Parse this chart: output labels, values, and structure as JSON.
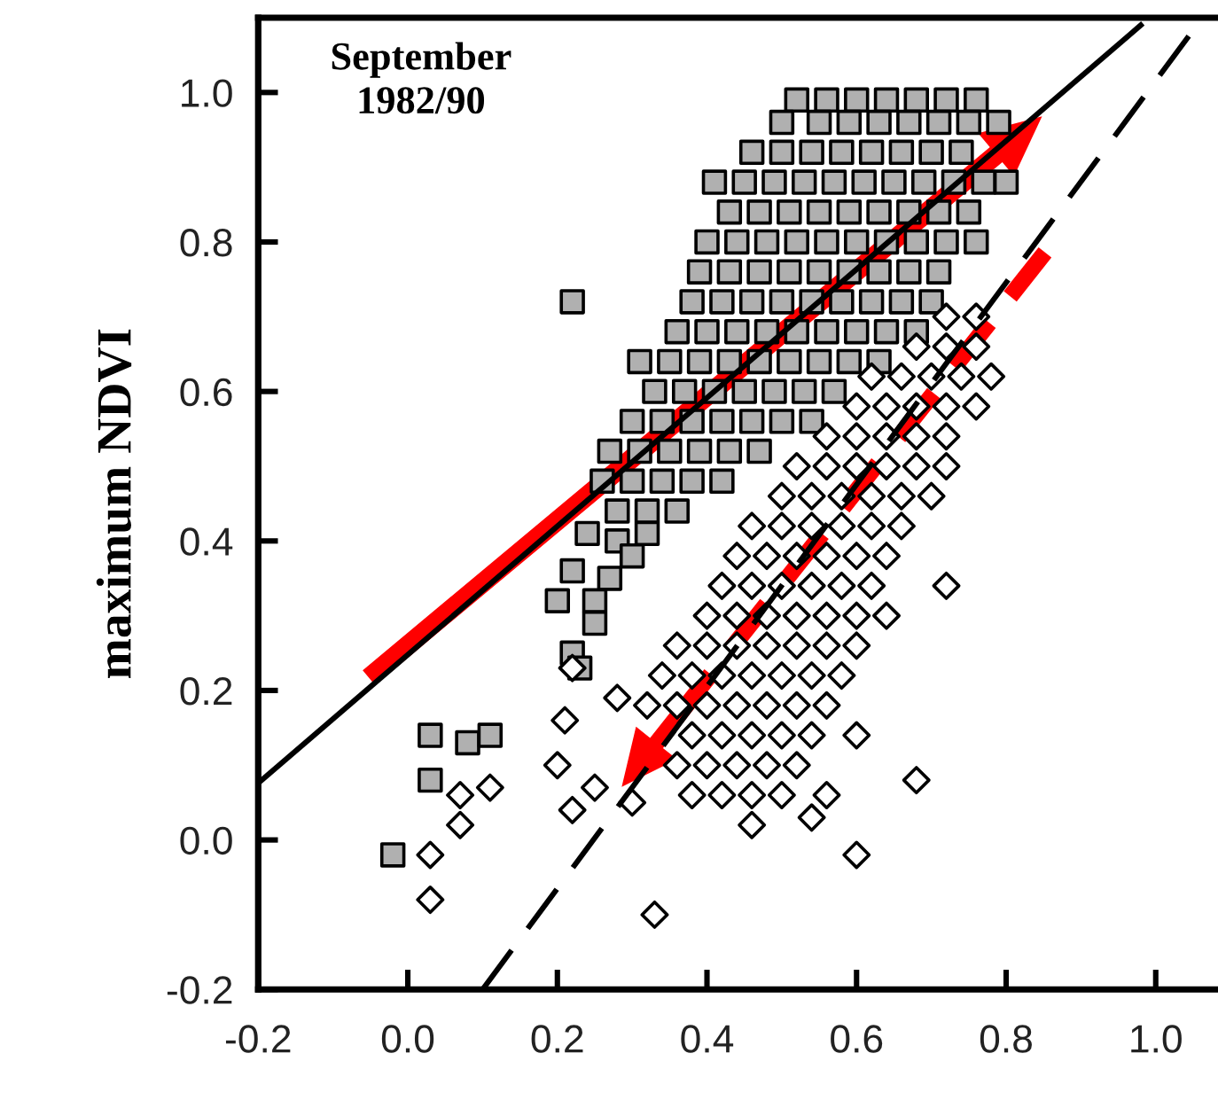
{
  "chart_data": {
    "type": "scatter",
    "ylabel": "maximum NDVI",
    "annotations": [
      "September\n1982/90"
    ],
    "xlim": [
      -0.2,
      1.08
    ],
    "ylim": [
      -0.2,
      1.1
    ],
    "xticks": [
      {
        "value": -0.2,
        "label": "-0.2"
      },
      {
        "value": 0,
        "label": "0.0"
      },
      0.2,
      0.4,
      0.6,
      0.8,
      {
        "value": 1,
        "label": "1.0"
      }
    ],
    "yticks": [
      {
        "value": -0.2,
        "label": "-0.2"
      },
      {
        "value": 0,
        "label": "0.0"
      },
      0.2,
      0.4,
      0.6,
      0.8,
      {
        "value": 1,
        "label": "1.0"
      }
    ],
    "grid": false,
    "series": [
      {
        "marker": "square",
        "color": "#b0b0b0",
        "x": [
          0.52,
          0.56,
          0.6,
          0.64,
          0.68,
          0.72,
          0.76,
          0.5,
          0.55,
          0.59,
          0.63,
          0.67,
          0.71,
          0.75,
          0.79,
          0.46,
          0.5,
          0.54,
          0.58,
          0.62,
          0.66,
          0.7,
          0.74,
          0.41,
          0.45,
          0.49,
          0.53,
          0.57,
          0.61,
          0.65,
          0.69,
          0.73,
          0.77,
          0.8,
          0.43,
          0.47,
          0.51,
          0.55,
          0.59,
          0.63,
          0.67,
          0.71,
          0.75,
          0.4,
          0.44,
          0.48,
          0.52,
          0.56,
          0.6,
          0.64,
          0.68,
          0.72,
          0.76,
          0.39,
          0.43,
          0.47,
          0.51,
          0.55,
          0.59,
          0.63,
          0.67,
          0.71,
          0.38,
          0.42,
          0.46,
          0.5,
          0.54,
          0.58,
          0.62,
          0.66,
          0.7,
          0.36,
          0.4,
          0.44,
          0.48,
          0.52,
          0.56,
          0.6,
          0.64,
          0.68,
          0.31,
          0.35,
          0.39,
          0.43,
          0.47,
          0.51,
          0.55,
          0.59,
          0.63,
          0.33,
          0.37,
          0.41,
          0.45,
          0.49,
          0.53,
          0.57,
          0.3,
          0.34,
          0.38,
          0.42,
          0.46,
          0.5,
          0.54,
          0.27,
          0.31,
          0.35,
          0.39,
          0.43,
          0.47,
          0.26,
          0.3,
          0.34,
          0.38,
          0.42,
          0.28,
          0.32,
          0.36,
          0.22,
          0.24,
          0.28,
          0.3,
          0.32,
          0.27,
          0.22,
          0.2,
          0.25,
          0.25,
          0.22,
          0.23,
          0.03,
          0.08,
          0.11,
          0.03,
          -0.02
        ],
        "values": [
          0.99,
          0.99,
          0.99,
          0.99,
          0.99,
          0.99,
          0.99,
          0.96,
          0.96,
          0.96,
          0.96,
          0.96,
          0.96,
          0.96,
          0.96,
          0.92,
          0.92,
          0.92,
          0.92,
          0.92,
          0.92,
          0.92,
          0.92,
          0.88,
          0.88,
          0.88,
          0.88,
          0.88,
          0.88,
          0.88,
          0.88,
          0.88,
          0.88,
          0.88,
          0.84,
          0.84,
          0.84,
          0.84,
          0.84,
          0.84,
          0.84,
          0.84,
          0.84,
          0.8,
          0.8,
          0.8,
          0.8,
          0.8,
          0.8,
          0.8,
          0.8,
          0.8,
          0.8,
          0.76,
          0.76,
          0.76,
          0.76,
          0.76,
          0.76,
          0.76,
          0.76,
          0.76,
          0.72,
          0.72,
          0.72,
          0.72,
          0.72,
          0.72,
          0.72,
          0.72,
          0.72,
          0.68,
          0.68,
          0.68,
          0.68,
          0.68,
          0.68,
          0.68,
          0.68,
          0.68,
          0.64,
          0.64,
          0.64,
          0.64,
          0.64,
          0.64,
          0.64,
          0.64,
          0.64,
          0.6,
          0.6,
          0.6,
          0.6,
          0.6,
          0.6,
          0.6,
          0.56,
          0.56,
          0.56,
          0.56,
          0.56,
          0.56,
          0.56,
          0.52,
          0.52,
          0.52,
          0.52,
          0.52,
          0.52,
          0.48,
          0.48,
          0.48,
          0.48,
          0.48,
          0.44,
          0.44,
          0.44,
          0.72,
          0.41,
          0.4,
          0.38,
          0.41,
          0.35,
          0.36,
          0.32,
          0.32,
          0.29,
          0.25,
          0.23,
          0.14,
          0.13,
          0.14,
          0.08,
          -0.02
        ]
      },
      {
        "marker": "diamond",
        "color": "#ffffff",
        "x": [
          0.72,
          0.76,
          0.68,
          0.72,
          0.76,
          0.62,
          0.66,
          0.7,
          0.74,
          0.78,
          0.6,
          0.64,
          0.68,
          0.72,
          0.76,
          0.56,
          0.6,
          0.64,
          0.68,
          0.72,
          0.52,
          0.56,
          0.6,
          0.64,
          0.68,
          0.72,
          0.5,
          0.54,
          0.58,
          0.62,
          0.66,
          0.7,
          0.46,
          0.5,
          0.54,
          0.58,
          0.62,
          0.66,
          0.44,
          0.48,
          0.52,
          0.56,
          0.6,
          0.64,
          0.42,
          0.46,
          0.5,
          0.54,
          0.58,
          0.62,
          0.72,
          0.4,
          0.44,
          0.48,
          0.52,
          0.56,
          0.6,
          0.64,
          0.36,
          0.4,
          0.44,
          0.48,
          0.52,
          0.56,
          0.6,
          0.34,
          0.38,
          0.42,
          0.46,
          0.5,
          0.54,
          0.58,
          0.32,
          0.36,
          0.4,
          0.44,
          0.48,
          0.52,
          0.56,
          0.38,
          0.42,
          0.46,
          0.5,
          0.54,
          0.6,
          0.36,
          0.4,
          0.44,
          0.48,
          0.52,
          0.38,
          0.42,
          0.46,
          0.5,
          0.56,
          0.68,
          0.6,
          0.54,
          0.46,
          0.33,
          0.2,
          0.21,
          0.22,
          0.28,
          0.25,
          0.3,
          0.03,
          0.03,
          0.07,
          0.11,
          0.07,
          0.22
        ],
        "values": [
          0.7,
          0.7,
          0.66,
          0.66,
          0.66,
          0.62,
          0.62,
          0.62,
          0.62,
          0.62,
          0.58,
          0.58,
          0.58,
          0.58,
          0.58,
          0.54,
          0.54,
          0.54,
          0.54,
          0.54,
          0.5,
          0.5,
          0.5,
          0.5,
          0.5,
          0.5,
          0.46,
          0.46,
          0.46,
          0.46,
          0.46,
          0.46,
          0.42,
          0.42,
          0.42,
          0.42,
          0.42,
          0.42,
          0.38,
          0.38,
          0.38,
          0.38,
          0.38,
          0.38,
          0.34,
          0.34,
          0.34,
          0.34,
          0.34,
          0.34,
          0.34,
          0.3,
          0.3,
          0.3,
          0.3,
          0.3,
          0.3,
          0.3,
          0.26,
          0.26,
          0.26,
          0.26,
          0.26,
          0.26,
          0.26,
          0.22,
          0.22,
          0.22,
          0.22,
          0.22,
          0.22,
          0.22,
          0.18,
          0.18,
          0.18,
          0.18,
          0.18,
          0.18,
          0.18,
          0.14,
          0.14,
          0.14,
          0.14,
          0.14,
          0.14,
          0.1,
          0.1,
          0.1,
          0.1,
          0.1,
          0.06,
          0.06,
          0.06,
          0.06,
          0.06,
          0.08,
          -0.02,
          0.03,
          0.02,
          -0.1,
          0.1,
          0.16,
          0.04,
          0.19,
          0.07,
          0.05,
          -0.02,
          -0.08,
          0.02,
          0.07,
          0.06,
          0.23
        ]
      },
      {
        "type": "line",
        "line_style": "solid",
        "color": "#000000",
        "x": [
          -0.2,
          0.98
        ],
        "values": [
          0.076,
          1.09
        ]
      },
      {
        "type": "line",
        "line_style": "dashed",
        "color": "#000000",
        "x": [
          0.1,
          1.055
        ],
        "values": [
          -0.2,
          1.09
        ]
      }
    ]
  }
}
